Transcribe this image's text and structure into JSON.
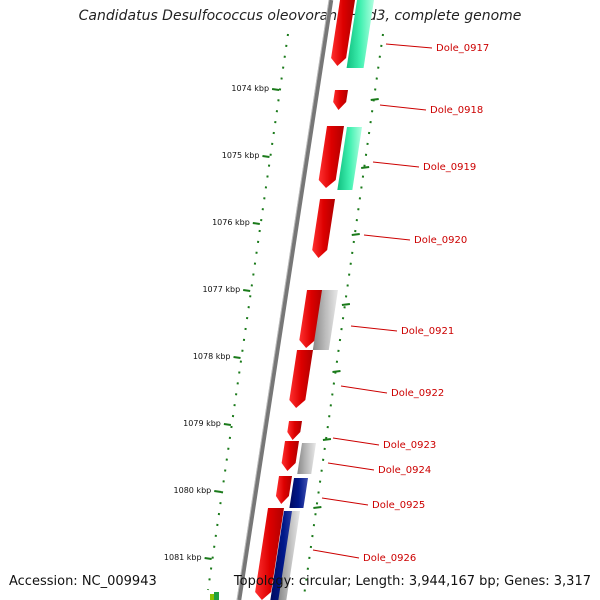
{
  "title": "Candidatus Desulfococcus oleovorans Hxd3, complete genome",
  "accession_text": "Accession: NC_009943",
  "summary_text": "Topology: circular; Length: 3,944,167 bp; Genes: 3,317",
  "colors": {
    "backbone": "#777777",
    "forward_gene": "#ee0000",
    "reverse_gene_green": "#22e0a0",
    "reverse_gene_gray": "#aaaaaa",
    "reverse_gene_navy": "#001080",
    "tick": "#1a7a1a",
    "label": "#cc0000"
  },
  "kbp_ticks": [
    {
      "label": "1074 kbp",
      "kbp": 1074
    },
    {
      "label": "1075 kbp",
      "kbp": 1075
    },
    {
      "label": "1076 kbp",
      "kbp": 1076
    },
    {
      "label": "1077 kbp",
      "kbp": 1077
    },
    {
      "label": "1078 kbp",
      "kbp": 1078
    },
    {
      "label": "1079 kbp",
      "kbp": 1079
    },
    {
      "label": "1080 kbp",
      "kbp": 1080
    },
    {
      "label": "1081 kbp",
      "kbp": 1081
    }
  ],
  "genes": [
    {
      "label": "Dole_0917"
    },
    {
      "label": "Dole_0918"
    },
    {
      "label": "Dole_0919"
    },
    {
      "label": "Dole_0920"
    },
    {
      "label": "Dole_0921"
    },
    {
      "label": "Dole_0922"
    },
    {
      "label": "Dole_0923"
    },
    {
      "label": "Dole_0924"
    },
    {
      "label": "Dole_0925"
    },
    {
      "label": "Dole_0926"
    }
  ]
}
